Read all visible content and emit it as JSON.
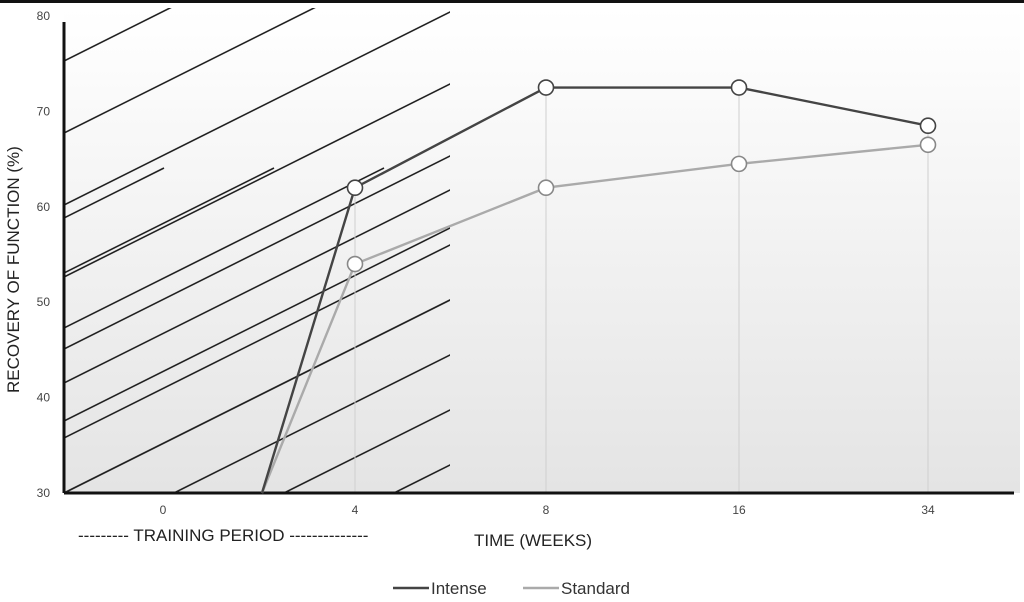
{
  "chart_data": {
    "type": "line",
    "ylabel": "RECOVERY OF FUNCTION (%)",
    "xlabel": "TIME (WEEKS)",
    "training_label": "--------- TRAINING  PERIOD --------------",
    "x_ticks": [
      "0",
      "4",
      "8",
      "16",
      "34"
    ],
    "y_ticks": [
      30,
      40,
      50,
      60,
      70,
      80
    ],
    "ylim": [
      30,
      80
    ],
    "grid": false,
    "legend_position": "bottom-center",
    "series": [
      {
        "name": "Intense",
        "color": "#444444",
        "start": {
          "x": "2",
          "y": 30
        },
        "points": [
          {
            "x": "4",
            "y": 62
          },
          {
            "x": "8",
            "y": 72.5
          },
          {
            "x": "16",
            "y": 72.5
          },
          {
            "x": "34",
            "y": 68.5
          }
        ]
      },
      {
        "name": "Standard",
        "color": "#aaaaaa",
        "start": {
          "x": "2",
          "y": 30
        },
        "points": [
          {
            "x": "4",
            "y": 54
          },
          {
            "x": "8",
            "y": 62
          },
          {
            "x": "16",
            "y": 64.5
          },
          {
            "x": "34",
            "y": 66.5
          }
        ]
      }
    ],
    "annotation": "Training period shaded with diagonal hatching (weeks 0-4)"
  }
}
